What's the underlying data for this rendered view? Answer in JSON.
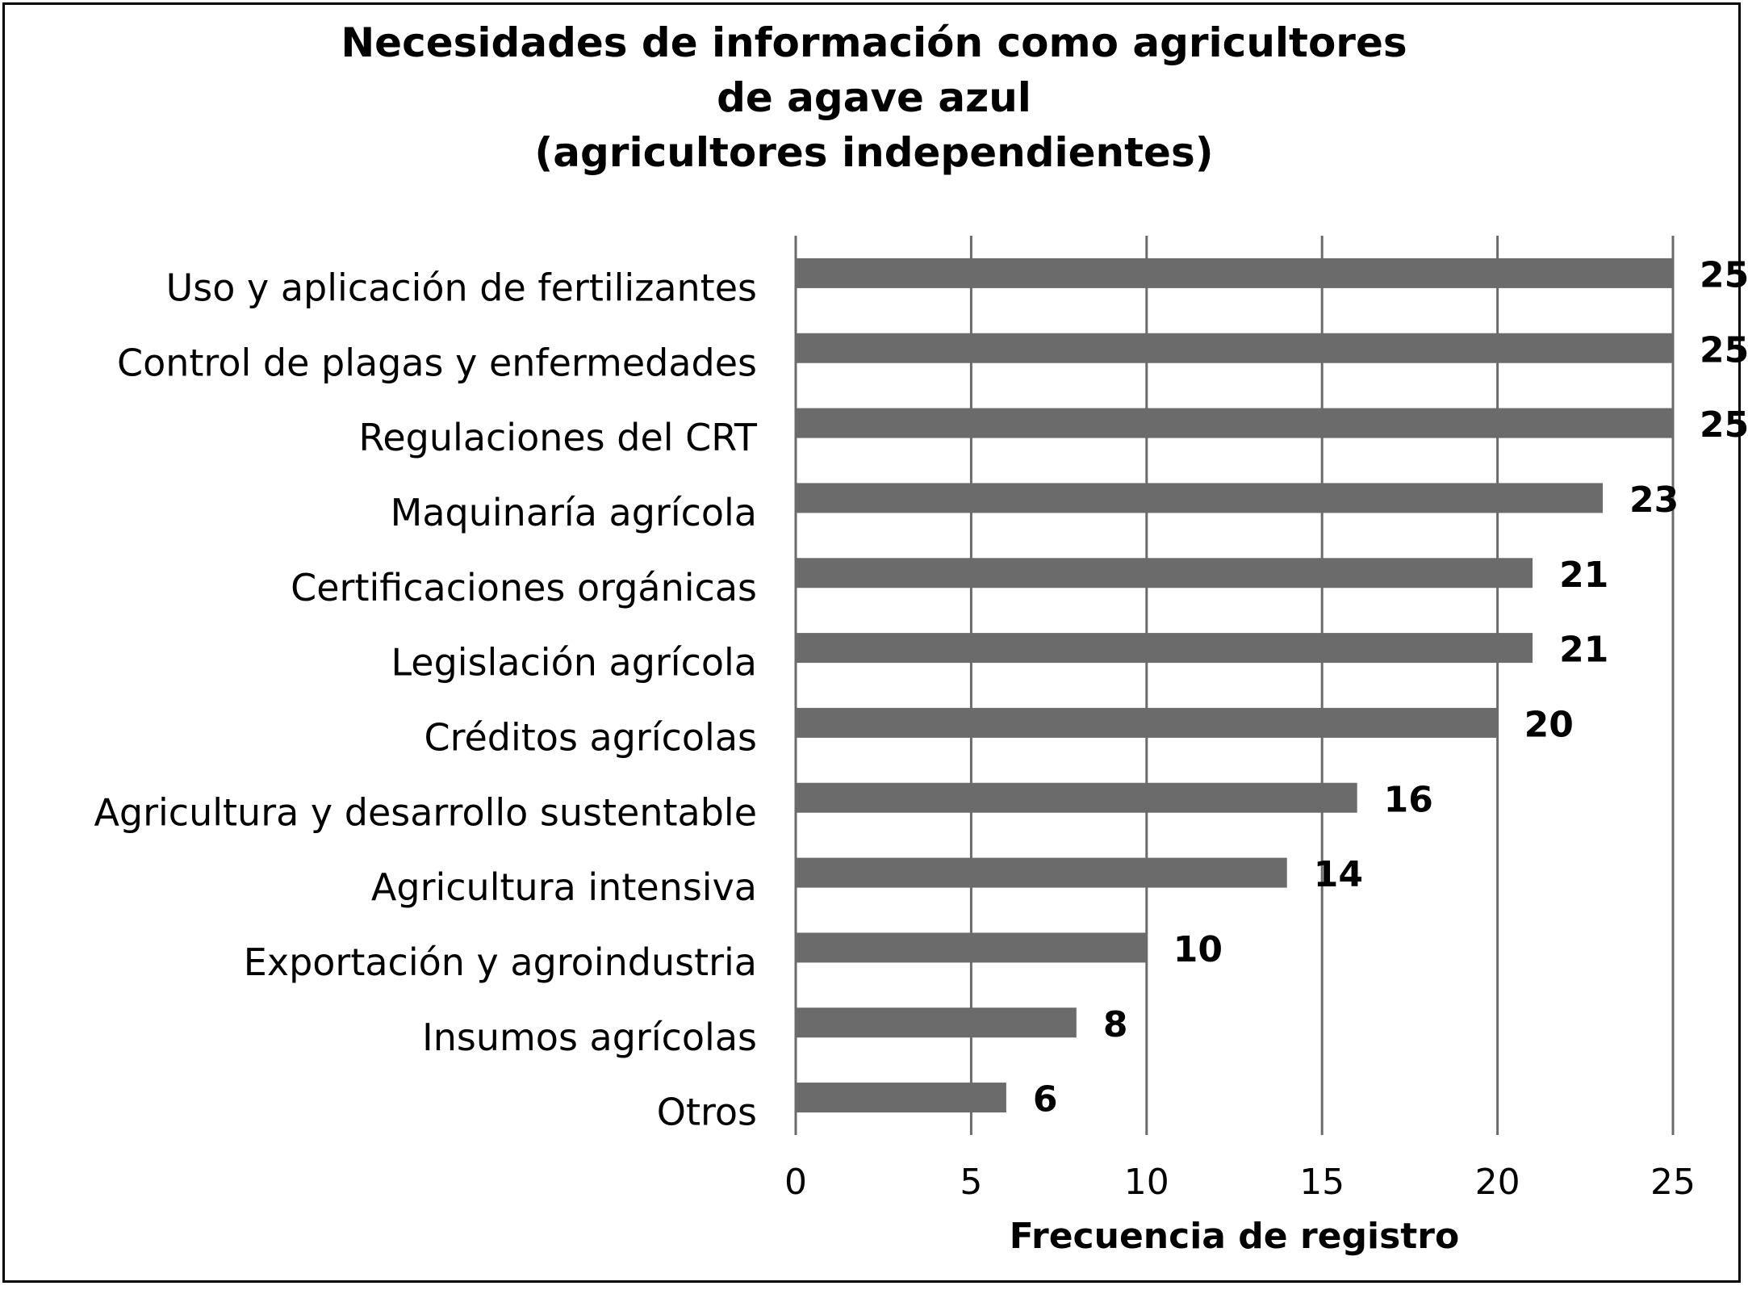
{
  "chart_data": {
    "type": "bar",
    "orientation": "horizontal",
    "title_lines": [
      "Necesidades de información como agricultores",
      "de agave azul",
      "(agricultores independientes)"
    ],
    "xlabel": "Frecuencia de registro",
    "ylabel": "",
    "xlim": [
      0,
      25
    ],
    "xticks": [
      0,
      5,
      10,
      15,
      20,
      25
    ],
    "grid": "vertical",
    "legend": "none",
    "bar_color": "#6b6b6b",
    "categories": [
      "Uso y aplicación de fertilizantes",
      "Control de plagas y enfermedades",
      "Regulaciones del CRT",
      "Maquinaría agrícola",
      "Certificaciones orgánicas",
      "Legislación agrícola",
      "Créditos agrícolas",
      "Agricultura y desarrollo sustentable",
      "Agricultura intensiva",
      "Exportación y agroindustria",
      "Insumos agrícolas",
      "Otros"
    ],
    "values": [
      25,
      25,
      25,
      23,
      21,
      21,
      20,
      16,
      14,
      10,
      8,
      6
    ]
  }
}
